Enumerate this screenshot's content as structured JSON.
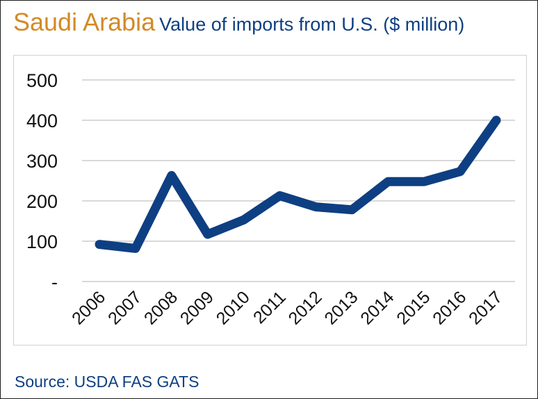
{
  "header": {
    "country": "Saudi Arabia",
    "subtitle": "Value of imports from U.S. ($ million)"
  },
  "source": "Source: USDA FAS GATS",
  "colors": {
    "country": "#d38a26",
    "text": "#0e3f82",
    "line": "#0e3f82",
    "grid": "#d9d9d9"
  },
  "chart_data": {
    "type": "line",
    "title": "Value of imports from U.S. ($ million)",
    "xlabel": "",
    "ylabel": "",
    "x": [
      "2006",
      "2007",
      "2008",
      "2009",
      "2010",
      "2011",
      "2012",
      "2013",
      "2014",
      "2015",
      "2016",
      "2017"
    ],
    "series": [
      {
        "values": [
          92,
          82,
          263,
          117,
          153,
          213,
          185,
          178,
          248,
          248,
          273,
          400
        ]
      }
    ],
    "ylim": [
      0,
      500
    ],
    "yticks": [
      0,
      100,
      200,
      300,
      400,
      500
    ],
    "ytick_labels": [
      "-",
      "100",
      "200",
      "300",
      "400",
      "500"
    ],
    "grid": true,
    "legend": "none"
  }
}
